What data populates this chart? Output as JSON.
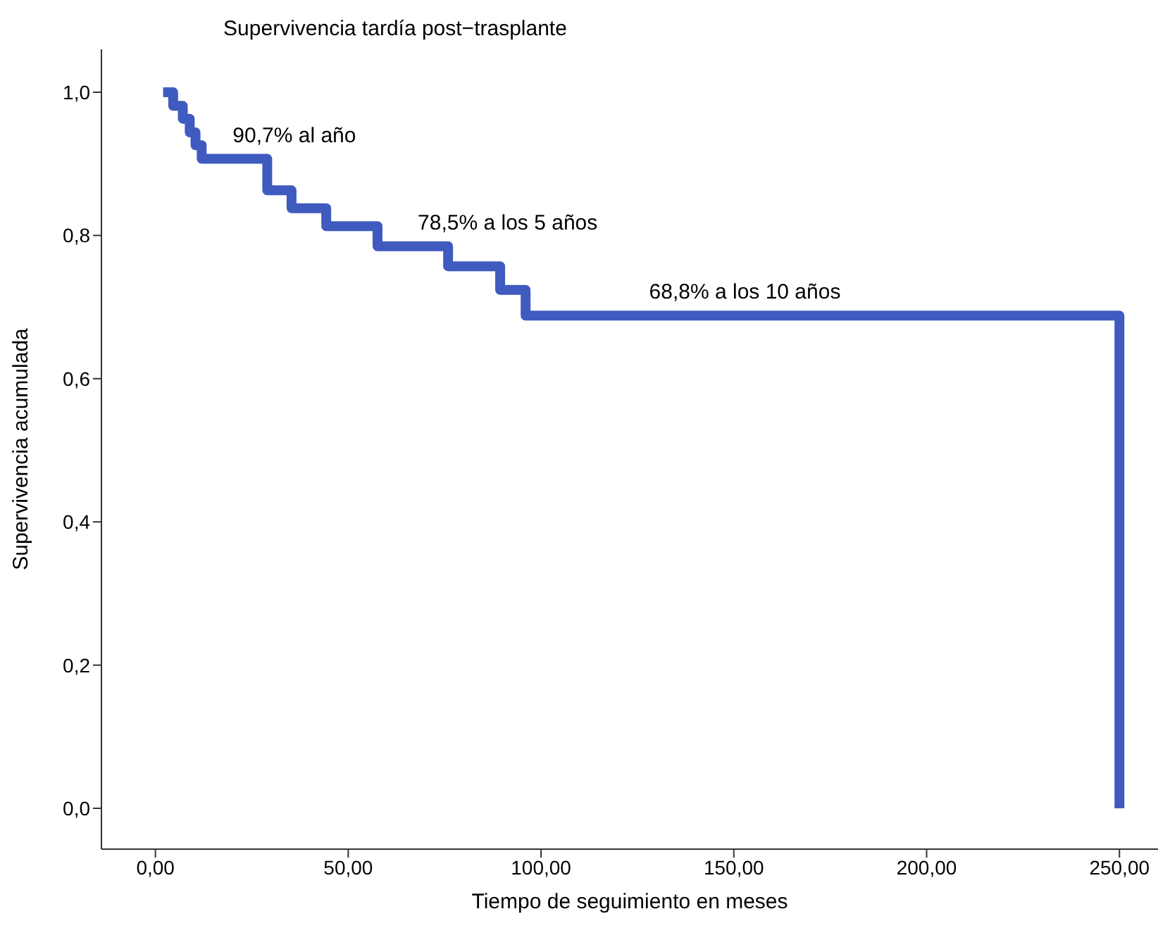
{
  "chart_data": {
    "type": "step",
    "title": "Supervivencia tardía post−trasplante",
    "xlabel": "Tiempo de seguimiento en meses",
    "ylabel": "Supervivencia acumulada",
    "series": [
      {
        "color": "#3f5bbf",
        "x": [
          2,
          4.6,
          7.1,
          8.9,
          10.4,
          12,
          29,
          35.3,
          44.3,
          57.6,
          75.9,
          89.4,
          96,
          250,
          250
        ],
        "values": [
          1.0,
          0.981,
          0.963,
          0.944,
          0.926,
          0.907,
          0.863,
          0.838,
          0.813,
          0.785,
          0.757,
          0.724,
          0.688,
          0.688,
          0
        ]
      }
    ],
    "xlim": [
      -14,
      260
    ],
    "ylim": [
      -0.057,
      1.06
    ],
    "xticks": [
      {
        "value": 0,
        "label": "0,00"
      },
      {
        "value": 50,
        "label": "50,00"
      },
      {
        "value": 100,
        "label": "100,00"
      },
      {
        "value": 150,
        "label": "150,00"
      },
      {
        "value": 200,
        "label": "200,00"
      },
      {
        "value": 250,
        "label": "250,00"
      }
    ],
    "yticks": [
      {
        "value": 0,
        "label": "0,0"
      },
      {
        "value": 0.2,
        "label": "0,2"
      },
      {
        "value": 0.4,
        "label": "0,4"
      },
      {
        "value": 0.6,
        "label": "0,6"
      },
      {
        "value": 0.8,
        "label": "0,8"
      },
      {
        "value": 1.0,
        "label": "1,0"
      }
    ],
    "annotations": [
      {
        "text": "90,7% al año",
        "x": 12,
        "y": 0.907
      },
      {
        "text": "78,5% a los 5 años",
        "x": 60,
        "y": 0.785
      },
      {
        "text": "68,8% a los 10 años",
        "x": 120,
        "y": 0.688
      }
    ],
    "grid": false,
    "marker": "none",
    "line_style": "solid"
  }
}
